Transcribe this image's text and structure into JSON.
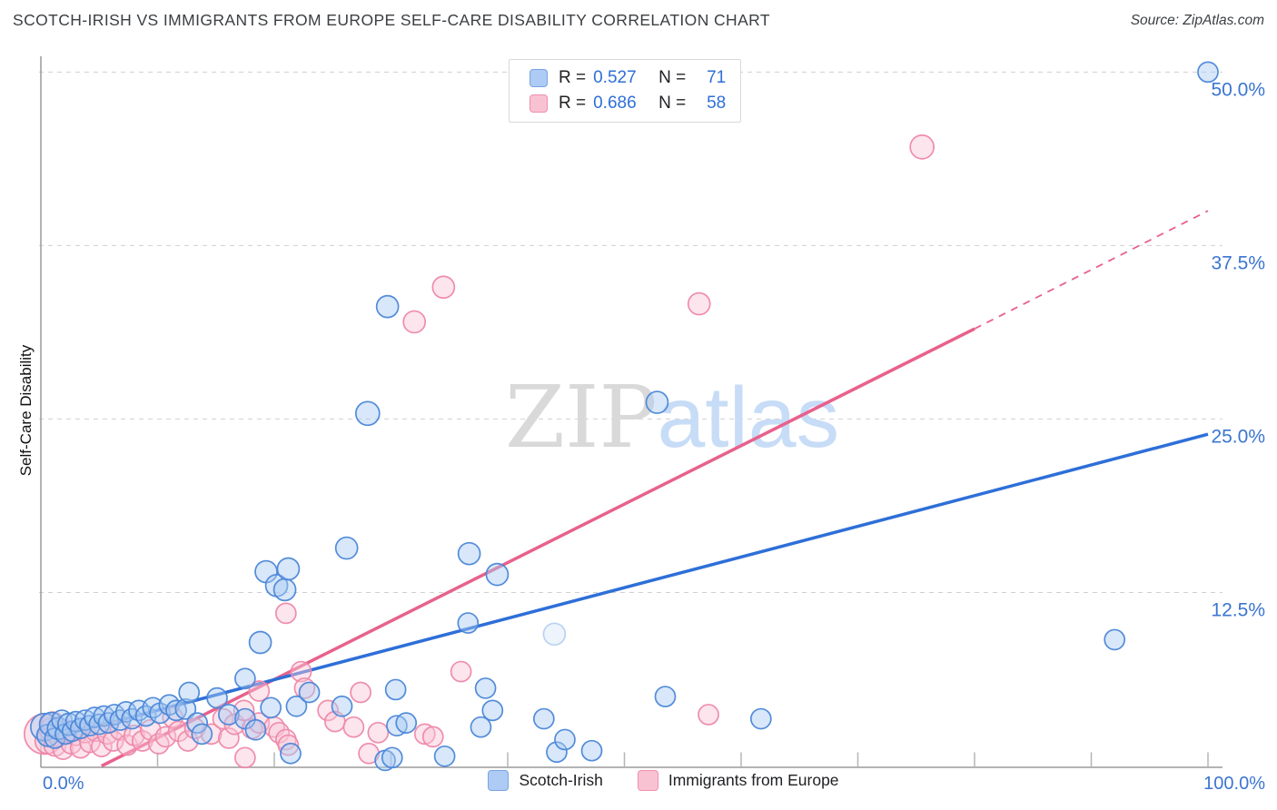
{
  "header": {
    "title": "SCOTCH-IRISH VS IMMIGRANTS FROM EUROPE SELF-CARE DISABILITY CORRELATION CHART",
    "source": "Source: ZipAtlas.com"
  },
  "watermark": {
    "zip": "ZIP",
    "atlas": "atlas"
  },
  "stats_legend": {
    "rows": [
      {
        "series": "Scotch-Irish",
        "r_label": "R =",
        "r_value": "0.527",
        "n_label": "N =",
        "n_value": "71"
      },
      {
        "series": "Immigrants from Europe",
        "r_label": "R =",
        "r_value": "0.686",
        "n_label": "N =",
        "n_value": "58"
      }
    ]
  },
  "axes": {
    "y_label": "Self-Care Disability",
    "x_min_label": "0.0%",
    "x_max_label": "100.0%",
    "x_range": [
      0,
      100
    ],
    "y_range": [
      0,
      52.5
    ],
    "y_tick_values": [
      12.5,
      25,
      37.5,
      50
    ],
    "y_tick_labels": [
      "12.5%",
      "25.0%",
      "37.5%",
      "50.0%"
    ],
    "x_tick_step": 10,
    "grid": "horizontal-dashed"
  },
  "bottom_legend": [
    {
      "label": "Scotch-Irish"
    },
    {
      "label": "Immigrants from Europe"
    }
  ],
  "colors": {
    "blue_stroke": "#4a86d8",
    "blue_fill": "#a9c9f2",
    "blue_line": "#2e6fd8",
    "pink_stroke": "#ee87a8",
    "pink_fill": "#f9c6d7",
    "pink_line": "#e8618c",
    "grid": "#d0d0d0",
    "axis": "#9a9a9a",
    "tick_label": "#3b75d1",
    "watermark_zip": "#d9d9d9",
    "watermark_atlas": "#c7dcf6"
  },
  "chart_data": {
    "type": "scatter",
    "title": "Scotch-Irish vs Immigrants from Europe Self-Care Disability",
    "xlabel": "",
    "ylabel": "Self-Care Disability",
    "x_units": "percent of population",
    "y_units": "percent with self-care disability",
    "series": [
      {
        "name": "Scotch-Irish",
        "R": 0.527,
        "N": 71,
        "trend": {
          "x1": 0,
          "y1": 1.8,
          "x2": 100,
          "y2": 23.9,
          "style": "solid"
        },
        "points": [
          [
            0.3,
            2.8,
            15
          ],
          [
            0.6,
            2.2,
            12
          ],
          [
            0.9,
            3.0,
            13
          ],
          [
            1.2,
            2.0,
            11
          ],
          [
            1.5,
            2.7,
            12
          ],
          [
            1.8,
            3.3,
            11
          ],
          [
            2.1,
            2.3,
            11
          ],
          [
            2.4,
            3.0,
            12
          ],
          [
            2.7,
            2.5,
            11
          ],
          [
            3.0,
            3.2,
            11
          ],
          [
            3.4,
            2.7,
            11
          ],
          [
            3.8,
            3.3,
            11
          ],
          [
            4.2,
            2.9,
            11
          ],
          [
            4.6,
            3.5,
            11
          ],
          [
            5.0,
            3.0,
            11
          ],
          [
            5.4,
            3.6,
            11
          ],
          [
            5.8,
            3.1,
            11
          ],
          [
            6.3,
            3.7,
            11
          ],
          [
            6.8,
            3.3,
            11
          ],
          [
            7.3,
            3.9,
            11
          ],
          [
            7.8,
            3.4,
            11
          ],
          [
            8.4,
            4.0,
            11
          ],
          [
            9.0,
            3.6,
            11
          ],
          [
            9.6,
            4.2,
            11
          ],
          [
            10.2,
            3.8,
            11
          ],
          [
            11.0,
            4.4,
            11
          ],
          [
            11.6,
            4.0,
            11
          ],
          [
            12.4,
            4.1,
            11
          ],
          [
            12.7,
            5.3,
            11
          ],
          [
            13.4,
            3.1,
            11
          ],
          [
            13.8,
            2.3,
            11
          ],
          [
            15.1,
            4.9,
            11
          ],
          [
            16.1,
            3.7,
            11
          ],
          [
            17.5,
            3.4,
            11
          ],
          [
            17.5,
            6.3,
            11
          ],
          [
            18.4,
            2.6,
            11
          ],
          [
            18.8,
            8.9,
            12
          ],
          [
            19.3,
            14.0,
            12
          ],
          [
            19.7,
            4.2,
            11
          ],
          [
            20.2,
            13.0,
            12
          ],
          [
            20.9,
            12.7,
            12
          ],
          [
            21.2,
            14.2,
            12
          ],
          [
            21.4,
            0.9,
            11
          ],
          [
            21.9,
            4.3,
            11
          ],
          [
            23.0,
            5.3,
            11
          ],
          [
            25.8,
            4.3,
            11
          ],
          [
            26.2,
            15.7,
            12
          ],
          [
            28.0,
            25.4,
            13
          ],
          [
            29.5,
            0.4,
            11
          ],
          [
            29.7,
            33.1,
            12
          ],
          [
            30.1,
            0.6,
            11
          ],
          [
            30.4,
            5.5,
            11
          ],
          [
            30.5,
            2.9,
            11
          ],
          [
            31.3,
            3.1,
            11
          ],
          [
            34.6,
            0.7,
            11
          ],
          [
            36.6,
            10.3,
            11
          ],
          [
            36.7,
            15.3,
            12
          ],
          [
            37.7,
            2.8,
            11
          ],
          [
            38.1,
            5.6,
            11
          ],
          [
            38.7,
            4.0,
            11
          ],
          [
            39.1,
            13.8,
            12
          ],
          [
            43.1,
            3.4,
            11
          ],
          [
            44.0,
            9.5,
            12,
            0.35
          ],
          [
            44.2,
            1.0,
            11
          ],
          [
            44.9,
            1.9,
            11
          ],
          [
            47.2,
            1.1,
            11
          ],
          [
            52.8,
            26.2,
            12
          ],
          [
            53.5,
            5.0,
            11
          ],
          [
            61.7,
            3.4,
            11
          ],
          [
            92.0,
            9.1,
            11
          ],
          [
            100.0,
            50.0,
            11
          ]
        ]
      },
      {
        "name": "Immigrants from Europe",
        "R": 0.686,
        "N": 58,
        "trend": {
          "x1": 5.2,
          "y1": 0,
          "x2": 80,
          "y2": 31.5,
          "style": "solid",
          "dashed_extension": {
            "x2": 100,
            "y2": 40
          }
        },
        "points": [
          [
            0.3,
            2.3,
            22
          ],
          [
            0.6,
            1.8,
            14
          ],
          [
            0.9,
            2.6,
            13
          ],
          [
            1.0,
            3.1,
            12
          ],
          [
            1.2,
            1.5,
            12
          ],
          [
            1.5,
            2.2,
            12
          ],
          [
            1.9,
            1.2,
            11
          ],
          [
            2.2,
            2.5,
            12
          ],
          [
            2.6,
            1.6,
            11
          ],
          [
            3.0,
            2.2,
            11
          ],
          [
            3.4,
            1.3,
            11
          ],
          [
            3.8,
            2.4,
            11
          ],
          [
            4.2,
            1.7,
            11
          ],
          [
            4.7,
            2.5,
            11
          ],
          [
            5.2,
            1.4,
            11
          ],
          [
            5.7,
            2.3,
            11
          ],
          [
            6.2,
            1.8,
            11
          ],
          [
            6.8,
            2.6,
            11
          ],
          [
            7.4,
            1.5,
            11
          ],
          [
            8.0,
            2.2,
            11
          ],
          [
            8.7,
            1.8,
            11
          ],
          [
            9.4,
            2.6,
            11
          ],
          [
            10.1,
            1.6,
            11
          ],
          [
            10.7,
            2.1,
            11
          ],
          [
            11.3,
            3.5,
            11
          ],
          [
            11.8,
            2.5,
            11
          ],
          [
            12.6,
            1.8,
            11
          ],
          [
            13.2,
            2.7,
            11
          ],
          [
            14.6,
            2.3,
            11
          ],
          [
            15.6,
            3.4,
            11
          ],
          [
            16.1,
            2.0,
            11
          ],
          [
            16.6,
            3.0,
            11
          ],
          [
            17.4,
            4.0,
            11
          ],
          [
            17.5,
            0.6,
            11
          ],
          [
            18.1,
            2.7,
            11
          ],
          [
            18.7,
            3.1,
            11
          ],
          [
            18.7,
            5.4,
            11
          ],
          [
            20.0,
            2.8,
            11
          ],
          [
            20.4,
            2.4,
            11
          ],
          [
            21.0,
            1.9,
            11
          ],
          [
            21.2,
            1.5,
            11
          ],
          [
            21.0,
            11.0,
            11
          ],
          [
            22.3,
            6.8,
            11
          ],
          [
            22.6,
            5.6,
            11
          ],
          [
            24.6,
            4.0,
            11
          ],
          [
            25.2,
            3.2,
            11
          ],
          [
            26.8,
            2.8,
            11
          ],
          [
            27.4,
            5.3,
            11
          ],
          [
            28.1,
            0.9,
            11
          ],
          [
            28.9,
            2.4,
            11
          ],
          [
            32.0,
            32.0,
            12
          ],
          [
            32.9,
            2.3,
            11
          ],
          [
            33.6,
            2.1,
            11
          ],
          [
            34.5,
            34.5,
            12
          ],
          [
            36.0,
            6.8,
            11
          ],
          [
            56.4,
            33.3,
            12
          ],
          [
            57.2,
            3.7,
            11
          ],
          [
            75.5,
            44.6,
            13
          ]
        ]
      }
    ],
    "legend_position": "top-center and bottom-center",
    "point_format": "[x_percent, y_percent, radius_px, optional_opacity]"
  }
}
